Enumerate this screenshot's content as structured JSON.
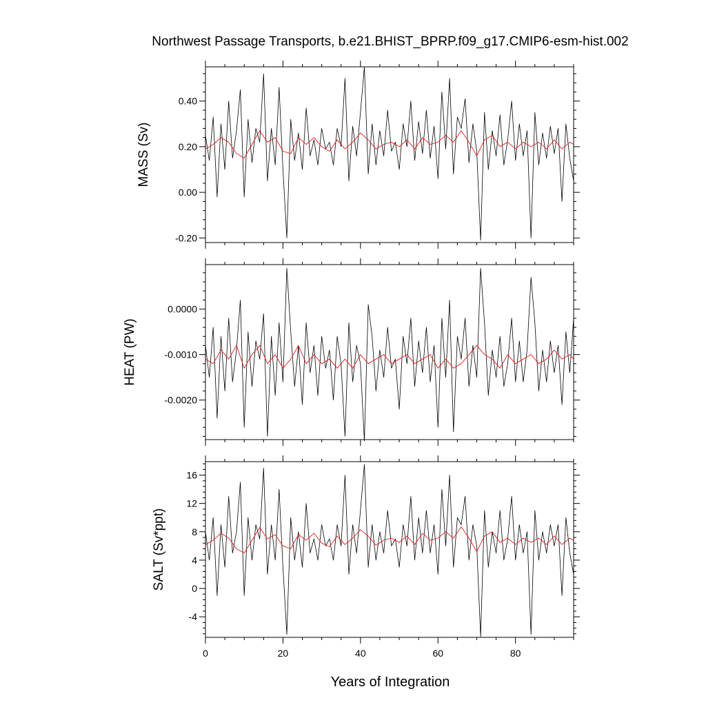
{
  "title": "Northwest Passage Transports, b.e21.BHIST_BPRP.f09_g17.CMIP6-esm-hist.002",
  "xlabel": "Years of Integration",
  "colors": {
    "monthly": "#000000",
    "smoothed": "#dd1c1c",
    "frame": "#000000"
  },
  "chart_data": [
    {
      "type": "line",
      "panel": "mass",
      "ylabel": "MASS (Sv)",
      "xlim": [
        0,
        95
      ],
      "ylim": [
        -0.22,
        0.55
      ],
      "xticks": [
        0,
        20,
        40,
        60,
        80
      ],
      "yticks": [
        -0.2,
        0.0,
        0.2,
        0.4
      ],
      "ytick_labels": [
        "-0.20",
        "0.00",
        "0.20",
        "0.40"
      ],
      "grid": false,
      "series": [
        {
          "role": "monthly",
          "x": [
            0,
            1,
            2,
            3,
            4,
            5,
            6,
            7,
            8,
            9,
            10,
            11,
            12,
            13,
            14,
            15,
            16,
            17,
            18,
            19,
            20,
            21,
            22,
            23,
            24,
            25,
            26,
            27,
            28,
            29,
            30,
            31,
            32,
            33,
            34,
            35,
            36,
            37,
            38,
            39,
            40,
            41,
            42,
            43,
            44,
            45,
            46,
            47,
            48,
            49,
            50,
            51,
            52,
            53,
            54,
            55,
            56,
            57,
            58,
            59,
            60,
            61,
            62,
            63,
            64,
            65,
            66,
            67,
            68,
            69,
            70,
            71,
            72,
            73,
            74,
            75,
            76,
            77,
            78,
            79,
            80,
            81,
            82,
            83,
            84,
            85,
            86,
            87,
            88,
            89,
            90,
            91,
            92,
            93,
            94,
            95
          ],
          "values": [
            0.25,
            0.14,
            0.33,
            -0.02,
            0.3,
            0.1,
            0.4,
            0.15,
            0.27,
            0.45,
            -0.02,
            0.32,
            0.13,
            0.28,
            0.22,
            0.52,
            0.05,
            0.28,
            0.12,
            0.46,
            0.1,
            -0.2,
            0.32,
            0.14,
            0.26,
            0.1,
            0.37,
            0.16,
            0.23,
            0.12,
            0.28,
            0.19,
            0.22,
            0.12,
            0.28,
            0.2,
            0.5,
            0.05,
            0.29,
            0.16,
            0.35,
            0.55,
            0.08,
            0.3,
            0.12,
            0.27,
            0.16,
            0.36,
            0.18,
            0.22,
            0.1,
            0.3,
            0.2,
            0.4,
            0.14,
            0.31,
            0.17,
            0.36,
            0.15,
            0.29,
            0.06,
            0.44,
            0.19,
            0.5,
            0.08,
            0.33,
            0.28,
            0.41,
            0.13,
            0.3,
            0.18,
            -0.21,
            0.35,
            0.1,
            0.27,
            0.16,
            0.34,
            0.12,
            0.23,
            0.4,
            0.14,
            0.3,
            0.16,
            0.27,
            -0.2,
            0.35,
            0.12,
            0.26,
            0.15,
            0.29,
            0.17,
            0.28,
            -0.04,
            0.3,
            0.15,
            0.05
          ]
        },
        {
          "role": "smoothed",
          "x": [
            0,
            2,
            4,
            6,
            8,
            10,
            12,
            14,
            16,
            18,
            20,
            22,
            24,
            26,
            28,
            30,
            32,
            34,
            36,
            38,
            40,
            42,
            44,
            46,
            48,
            50,
            52,
            54,
            56,
            58,
            60,
            62,
            64,
            66,
            68,
            70,
            72,
            74,
            76,
            78,
            80,
            82,
            84,
            86,
            88,
            90,
            92,
            94,
            95
          ],
          "values": [
            0.19,
            0.21,
            0.24,
            0.22,
            0.17,
            0.15,
            0.21,
            0.27,
            0.22,
            0.24,
            0.18,
            0.17,
            0.24,
            0.21,
            0.24,
            0.2,
            0.18,
            0.23,
            0.19,
            0.22,
            0.26,
            0.23,
            0.19,
            0.21,
            0.22,
            0.2,
            0.23,
            0.19,
            0.24,
            0.21,
            0.22,
            0.25,
            0.22,
            0.27,
            0.22,
            0.16,
            0.23,
            0.25,
            0.2,
            0.22,
            0.19,
            0.22,
            0.2,
            0.22,
            0.19,
            0.23,
            0.19,
            0.22,
            0.21
          ]
        }
      ]
    },
    {
      "type": "line",
      "panel": "heat",
      "ylabel": "HEAT (PW)",
      "xlim": [
        0,
        95
      ],
      "ylim": [
        -0.00287,
        0.00098
      ],
      "xticks": [
        0,
        20,
        40,
        60,
        80
      ],
      "yticks": [
        -0.002,
        -0.001,
        0.0
      ],
      "ytick_labels": [
        "-0.0020",
        "-0.0010",
        "0.0000"
      ],
      "grid": false,
      "series": [
        {
          "role": "monthly",
          "x": [
            0,
            1,
            2,
            3,
            4,
            5,
            6,
            7,
            8,
            9,
            10,
            11,
            12,
            13,
            14,
            15,
            16,
            17,
            18,
            19,
            20,
            21,
            22,
            23,
            24,
            25,
            26,
            27,
            28,
            29,
            30,
            31,
            32,
            33,
            34,
            35,
            36,
            37,
            38,
            39,
            40,
            41,
            42,
            43,
            44,
            45,
            46,
            47,
            48,
            49,
            50,
            51,
            52,
            53,
            54,
            55,
            56,
            57,
            58,
            59,
            60,
            61,
            62,
            63,
            64,
            65,
            66,
            67,
            68,
            69,
            70,
            71,
            72,
            73,
            74,
            75,
            76,
            77,
            78,
            79,
            80,
            81,
            82,
            83,
            84,
            85,
            86,
            87,
            88,
            89,
            90,
            91,
            92,
            93,
            94,
            95
          ],
          "values": [
            -0.0008,
            -0.0015,
            -0.0004,
            -0.0024,
            -0.0006,
            -0.0018,
            -0.0002,
            -0.0016,
            -0.0009,
            0.0002,
            -0.0026,
            -0.0005,
            -0.0017,
            -0.0007,
            -0.0011,
            -0.0001,
            -0.0028,
            -0.0006,
            -0.0019,
            -0.0003,
            -0.0016,
            0.0009,
            -0.0005,
            -0.0017,
            -0.0008,
            -0.0021,
            -0.0003,
            -0.0014,
            -0.0008,
            -0.0019,
            -0.0006,
            -0.0013,
            -0.0009,
            -0.002,
            -0.0006,
            -0.0012,
            -0.0028,
            -0.0003,
            -0.0016,
            -0.0008,
            -0.0012,
            -0.0029,
            0.0001,
            -0.0006,
            -0.0018,
            -0.0009,
            -0.0015,
            -0.0004,
            -0.0013,
            -0.0011,
            -0.0022,
            -0.0006,
            -0.0012,
            -0.0002,
            -0.0017,
            -0.0007,
            -0.0014,
            -0.0004,
            -0.0016,
            -0.0008,
            -0.0026,
            -0.0002,
            -0.0015,
            0.0002,
            -0.0027,
            -0.0006,
            -0.0011,
            -0.0002,
            -0.0017,
            -0.0008,
            -0.0015,
            0.0009,
            -0.0003,
            -0.0019,
            -0.0009,
            -0.0015,
            -0.0006,
            -0.0017,
            -0.0012,
            -0.0002,
            -0.0016,
            -0.0007,
            -0.0016,
            -0.0009,
            0.0007,
            -0.0003,
            -0.0018,
            -0.0009,
            -0.0016,
            -0.0007,
            -0.0014,
            -0.0008,
            -0.0021,
            -0.0005,
            -0.0014,
            -0.0002
          ]
        },
        {
          "role": "smoothed",
          "x": [
            0,
            2,
            4,
            6,
            8,
            10,
            12,
            14,
            16,
            18,
            20,
            22,
            24,
            26,
            28,
            30,
            32,
            34,
            36,
            38,
            40,
            42,
            44,
            46,
            48,
            50,
            52,
            54,
            56,
            58,
            60,
            62,
            64,
            66,
            68,
            70,
            72,
            74,
            76,
            78,
            80,
            82,
            84,
            86,
            88,
            90,
            92,
            94,
            95
          ],
          "values": [
            -0.0011,
            -0.0012,
            -0.0009,
            -0.0011,
            -0.0008,
            -0.0013,
            -0.001,
            -0.0008,
            -0.0012,
            -0.001,
            -0.0013,
            -0.0011,
            -0.0008,
            -0.0012,
            -0.001,
            -0.0012,
            -0.0011,
            -0.0013,
            -0.0011,
            -0.0013,
            -0.001,
            -0.0012,
            -0.0011,
            -0.001,
            -0.0012,
            -0.0011,
            -0.001,
            -0.0012,
            -0.0011,
            -0.001,
            -0.0013,
            -0.0011,
            -0.0013,
            -0.0012,
            -0.001,
            -0.0008,
            -0.001,
            -0.0011,
            -0.0013,
            -0.001,
            -0.0012,
            -0.0011,
            -0.001,
            -0.0012,
            -0.0011,
            -0.0009,
            -0.0011,
            -0.001,
            -0.0011
          ]
        }
      ]
    },
    {
      "type": "line",
      "panel": "salt",
      "ylabel": "SALT (Sv*ppt)",
      "xlim": [
        0,
        95
      ],
      "ylim": [
        -6.9,
        17.9
      ],
      "xticks": [
        0,
        20,
        40,
        60,
        80
      ],
      "yticks": [
        -4,
        0,
        4,
        8,
        12,
        16
      ],
      "ytick_labels": [
        "-4",
        "0",
        "4",
        "8",
        "12",
        "16"
      ],
      "grid": false,
      "series": [
        {
          "role": "monthly",
          "x": [
            0,
            1,
            2,
            3,
            4,
            5,
            6,
            7,
            8,
            9,
            10,
            11,
            12,
            13,
            14,
            15,
            16,
            17,
            18,
            19,
            20,
            21,
            22,
            23,
            24,
            25,
            26,
            27,
            28,
            29,
            30,
            31,
            32,
            33,
            34,
            35,
            36,
            37,
            38,
            39,
            40,
            41,
            42,
            43,
            44,
            45,
            46,
            47,
            48,
            49,
            50,
            51,
            52,
            53,
            54,
            55,
            56,
            57,
            58,
            59,
            60,
            61,
            62,
            63,
            64,
            65,
            66,
            67,
            68,
            69,
            70,
            71,
            72,
            73,
            74,
            75,
            76,
            77,
            78,
            79,
            80,
            81,
            82,
            83,
            84,
            85,
            86,
            87,
            88,
            89,
            90,
            91,
            92,
            93,
            94,
            95
          ],
          "values": [
            8,
            4,
            10,
            -1,
            9,
            3,
            13,
            5,
            8,
            15,
            -1,
            10,
            4,
            9,
            7,
            17,
            2,
            9,
            4,
            14,
            3,
            -6.5,
            10,
            4,
            8,
            3,
            12,
            5,
            7,
            4,
            9,
            6,
            7,
            4,
            9,
            6,
            16,
            2,
            9,
            5,
            11,
            17.5,
            3,
            9,
            4,
            8,
            5,
            11,
            6,
            7,
            3,
            9,
            6,
            13,
            4,
            10,
            5,
            11,
            5,
            9,
            2,
            14,
            6,
            16,
            3,
            10,
            9,
            13,
            4,
            9,
            6,
            -6.8,
            11,
            3,
            8,
            5,
            11,
            4,
            7,
            13,
            4,
            9,
            5,
            8,
            -6.5,
            11,
            4,
            8,
            5,
            9,
            6,
            9,
            -1,
            10,
            5,
            2
          ]
        },
        {
          "role": "smoothed",
          "x": [
            0,
            2,
            4,
            6,
            8,
            10,
            12,
            14,
            16,
            18,
            20,
            22,
            24,
            26,
            28,
            30,
            32,
            34,
            36,
            38,
            40,
            42,
            44,
            46,
            48,
            50,
            52,
            54,
            56,
            58,
            60,
            62,
            64,
            66,
            68,
            70,
            72,
            74,
            76,
            78,
            80,
            82,
            84,
            86,
            88,
            90,
            92,
            94,
            95
          ],
          "values": [
            6.2,
            6.8,
            7.8,
            7.1,
            5.6,
            5,
            6.8,
            8.6,
            7,
            7.6,
            6,
            5.6,
            7.6,
            6.8,
            7.8,
            6.4,
            5.9,
            7.4,
            6.2,
            7.1,
            8.3,
            7.4,
            6.1,
            6.8,
            7.1,
            6.5,
            7.4,
            6.2,
            7.8,
            6.8,
            7.1,
            8,
            7.1,
            8.7,
            7.1,
            5.2,
            7.4,
            8,
            6.5,
            7.1,
            6.2,
            7.1,
            6.5,
            7.1,
            6.2,
            7.4,
            6.2,
            7.1,
            6.8
          ]
        }
      ]
    }
  ]
}
